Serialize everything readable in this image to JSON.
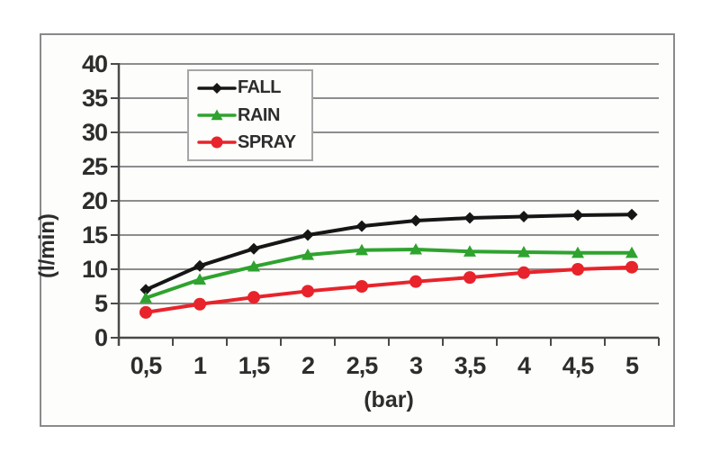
{
  "figure": {
    "background_color": "#ffffff",
    "frame_border_color": "#8a8a8a",
    "gridline_color": "#8d8d8d",
    "axis_color": "#4a4a4a",
    "text_color": "#2d2d2d"
  },
  "chart_data": {
    "type": "line",
    "title": "",
    "xlabel": "(bar)",
    "ylabel": "(l/min)",
    "x_values": [
      0.5,
      1,
      1.5,
      2,
      2.5,
      3,
      3.5,
      4,
      4.5,
      5
    ],
    "x_tick_labels": [
      "0,5",
      "1",
      "1,5",
      "2",
      "2,5",
      "3",
      "3,5",
      "4",
      "4,5",
      "5"
    ],
    "y_ticks": [
      0,
      5,
      10,
      15,
      20,
      25,
      30,
      35,
      40
    ],
    "y_tick_labels": [
      "0",
      "5",
      "10",
      "15",
      "20",
      "25",
      "30",
      "35",
      "40"
    ],
    "ylim": [
      0,
      40
    ],
    "grid": true,
    "legend_position": "upper-left-inside",
    "series": [
      {
        "name": "FALL",
        "color": "#161616",
        "marker": "diamond",
        "values": [
          7.0,
          10.5,
          13.0,
          15.0,
          16.3,
          17.1,
          17.5,
          17.7,
          17.9,
          18.0
        ]
      },
      {
        "name": "RAIN",
        "color": "#2ea32e",
        "marker": "triangle",
        "values": [
          5.8,
          8.5,
          10.4,
          12.1,
          12.8,
          12.9,
          12.6,
          12.5,
          12.4,
          12.4
        ]
      },
      {
        "name": "SPRAY",
        "color": "#e8232b",
        "marker": "circle",
        "values": [
          3.7,
          4.9,
          5.9,
          6.8,
          7.5,
          8.2,
          8.8,
          9.5,
          10.0,
          10.3
        ]
      }
    ]
  }
}
